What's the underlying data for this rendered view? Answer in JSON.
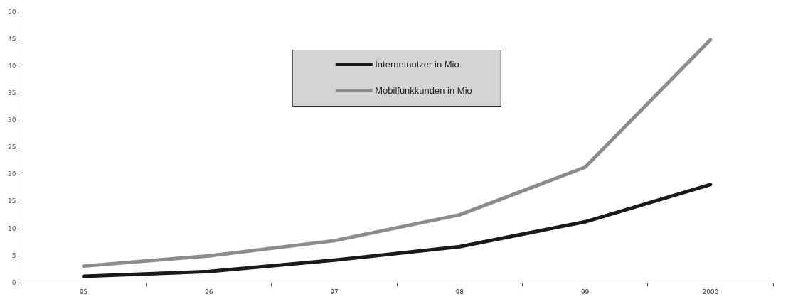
{
  "chart_data": {
    "type": "line",
    "categories": [
      "95",
      "96",
      "97",
      "98",
      "99",
      "2000"
    ],
    "series": [
      {
        "name": "Internetnutzer in Mio.",
        "color": "#1a1a1a",
        "values": [
          1.2,
          2.1,
          4.2,
          6.7,
          11.3,
          18.2
        ]
      },
      {
        "name": "Mobilfunkkunden in Mio",
        "color": "#8c8c8c",
        "values": [
          3.1,
          5.0,
          7.8,
          12.6,
          21.4,
          45.0
        ]
      }
    ],
    "ylim": [
      0,
      50
    ],
    "yticks": [
      0,
      5,
      10,
      15,
      20,
      25,
      30,
      35,
      40,
      45,
      50
    ],
    "grid": false,
    "legend": "top",
    "marker": "none",
    "line_style": "solid"
  }
}
